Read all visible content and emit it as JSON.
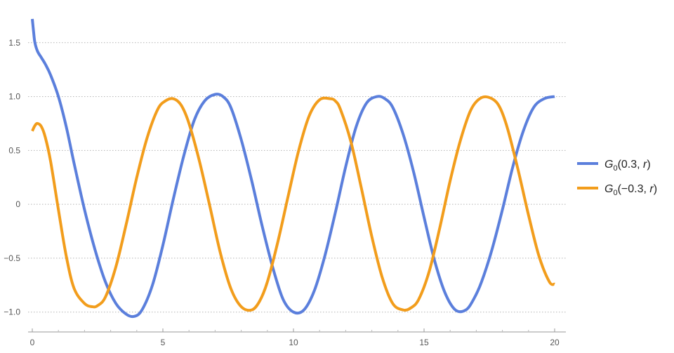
{
  "chart_data": {
    "type": "line",
    "title": "",
    "xlabel": "",
    "ylabel": "",
    "xlim": [
      0,
      20
    ],
    "ylim": [
      -1.08,
      1.72
    ],
    "x_ticks": [
      0,
      5,
      10,
      15,
      20
    ],
    "x_tick_labels": [
      "0",
      "5",
      "10",
      "15",
      "20"
    ],
    "y_ticks": [
      -1.0,
      -0.5,
      0,
      0.5,
      1.0,
      1.5
    ],
    "y_tick_labels": [
      "−1.0",
      "−0.5",
      "0",
      "0.5",
      "1.0",
      "1.5"
    ],
    "grid": "horizontal dotted at y ticks",
    "legend_position": "right",
    "series": [
      {
        "name": "G0(0.3, r)",
        "legend": {
          "sym": "G",
          "sub": "0",
          "pre": "(0.3, ",
          "var": "r",
          "post": ")"
        },
        "color": "#5b7fdc",
        "x": [
          0,
          0.05,
          0.1,
          0.2,
          0.35,
          0.5,
          0.7,
          1.0,
          1.3,
          1.6,
          2.0,
          2.4,
          2.8,
          3.2,
          3.6,
          3.9,
          4.2,
          4.6,
          5.0,
          5.4,
          5.8,
          6.2,
          6.6,
          7.0,
          7.3,
          7.6,
          8.0,
          8.4,
          8.8,
          9.2,
          9.6,
          10.0,
          10.4,
          10.8,
          11.2,
          11.6,
          12.0,
          12.4,
          12.8,
          13.2,
          13.5,
          13.8,
          14.2,
          14.6,
          15.0,
          15.4,
          15.8,
          16.2,
          16.6,
          16.9,
          17.2,
          17.6,
          18.0,
          18.4,
          18.8,
          19.2,
          19.6,
          20.0
        ],
        "y": [
          1.72,
          1.6,
          1.5,
          1.42,
          1.36,
          1.3,
          1.2,
          1.0,
          0.72,
          0.38,
          -0.05,
          -0.42,
          -0.72,
          -0.92,
          -1.02,
          -1.04,
          -0.98,
          -0.75,
          -0.38,
          0.05,
          0.45,
          0.78,
          0.96,
          1.02,
          1.0,
          0.9,
          0.6,
          0.22,
          -0.2,
          -0.58,
          -0.88,
          -1.0,
          -0.98,
          -0.8,
          -0.48,
          -0.08,
          0.35,
          0.72,
          0.94,
          1.0,
          0.98,
          0.9,
          0.65,
          0.3,
          -0.12,
          -0.52,
          -0.82,
          -0.98,
          -0.98,
          -0.88,
          -0.72,
          -0.42,
          -0.05,
          0.35,
          0.68,
          0.9,
          0.98,
          1.0
        ]
      },
      {
        "name": "G0(−0.3, r)",
        "legend": {
          "sym": "G",
          "sub": "0",
          "pre": "(−0.3, ",
          "var": "r",
          "post": ")"
        },
        "color": "#f29d1c",
        "x": [
          0,
          0.1,
          0.2,
          0.35,
          0.5,
          0.7,
          1.0,
          1.3,
          1.6,
          2.0,
          2.3,
          2.5,
          2.8,
          3.2,
          3.6,
          4.0,
          4.4,
          4.8,
          5.1,
          5.4,
          5.7,
          6.0,
          6.4,
          6.8,
          7.2,
          7.6,
          8.0,
          8.4,
          8.7,
          9.0,
          9.4,
          9.8,
          10.2,
          10.6,
          11.0,
          11.4,
          11.6,
          11.8,
          12.2,
          12.6,
          13.0,
          13.4,
          13.8,
          14.2,
          14.5,
          14.8,
          15.2,
          15.6,
          16.0,
          16.4,
          16.8,
          17.2,
          17.6,
          17.9,
          18.2,
          18.6,
          19.0,
          19.4,
          19.8,
          20.0
        ],
        "y": [
          0.68,
          0.73,
          0.75,
          0.72,
          0.62,
          0.4,
          -0.05,
          -0.48,
          -0.78,
          -0.92,
          -0.95,
          -0.94,
          -0.86,
          -0.58,
          -0.18,
          0.25,
          0.62,
          0.88,
          0.96,
          0.98,
          0.92,
          0.75,
          0.4,
          -0.02,
          -0.45,
          -0.78,
          -0.95,
          -0.98,
          -0.9,
          -0.72,
          -0.35,
          0.08,
          0.5,
          0.82,
          0.97,
          0.98,
          0.96,
          0.88,
          0.58,
          0.15,
          -0.3,
          -0.68,
          -0.92,
          -0.98,
          -0.96,
          -0.88,
          -0.62,
          -0.22,
          0.22,
          0.6,
          0.88,
          0.99,
          0.98,
          0.9,
          0.7,
          0.32,
          -0.1,
          -0.48,
          -0.72,
          -0.74
        ]
      }
    ]
  }
}
